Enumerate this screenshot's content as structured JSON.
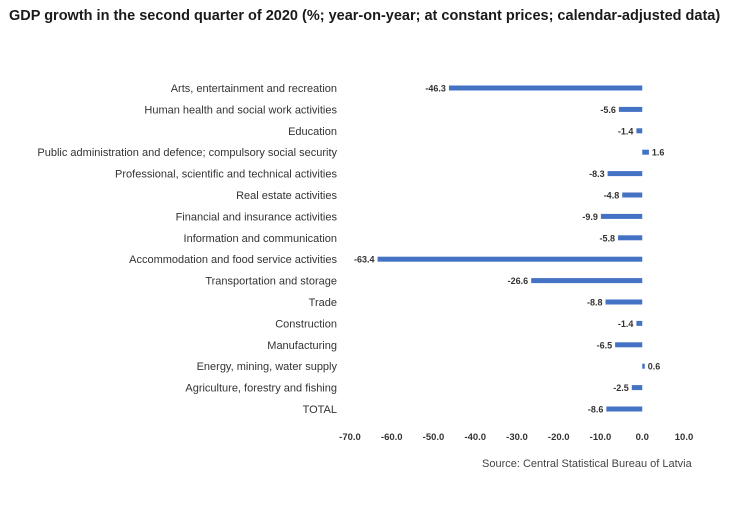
{
  "title": "GDP growth in the second quarter of 2020 (%; year-on-year; at constant prices; calendar-adjusted data)",
  "source": "Source: Central Statistical Bureau of Latvia",
  "colors": {
    "bar": "#4472c4",
    "text": "#333333"
  },
  "chart_data": {
    "type": "bar",
    "orientation": "horizontal",
    "categories": [
      "Arts, entertainment and recreation",
      "Human health and social work activities",
      "Education",
      "Public administration and defence; compulsory social security",
      "Professional, scientific and technical activities",
      "Real estate activities",
      "Financial and insurance activities",
      "Information and communication",
      "Accommodation and food service activities",
      "Transportation and storage",
      "Trade",
      "Construction",
      "Manufacturing",
      "Energy, mining, water supply",
      "Agriculture, forestry and fishing",
      "TOTAL"
    ],
    "values": [
      -46.3,
      -5.6,
      -1.4,
      1.6,
      -8.3,
      -4.8,
      -9.9,
      -5.8,
      -63.4,
      -26.6,
      -8.8,
      -1.4,
      -6.5,
      0.6,
      -2.5,
      -8.6
    ],
    "value_labels": [
      "-46.3",
      "-5.6",
      "-1.4",
      "1.6",
      "-8.3",
      "-4.8",
      "-9.9",
      "-5.8",
      "-63.4",
      "-26.6",
      "-8.8",
      "-1.4",
      "-6.5",
      "0.6",
      "-2.5",
      "-8.6"
    ],
    "xticks": [
      -70,
      -60,
      -50,
      -40,
      -30,
      -20,
      -10,
      0,
      10
    ],
    "xtick_labels": [
      "-70.0",
      "-60.0",
      "-50.0",
      "-40.0",
      "-30.0",
      "-20.0",
      "-10.0",
      "0.0",
      "10.0"
    ],
    "xlim": [
      -70,
      10
    ],
    "grid": false,
    "legend": "none"
  }
}
